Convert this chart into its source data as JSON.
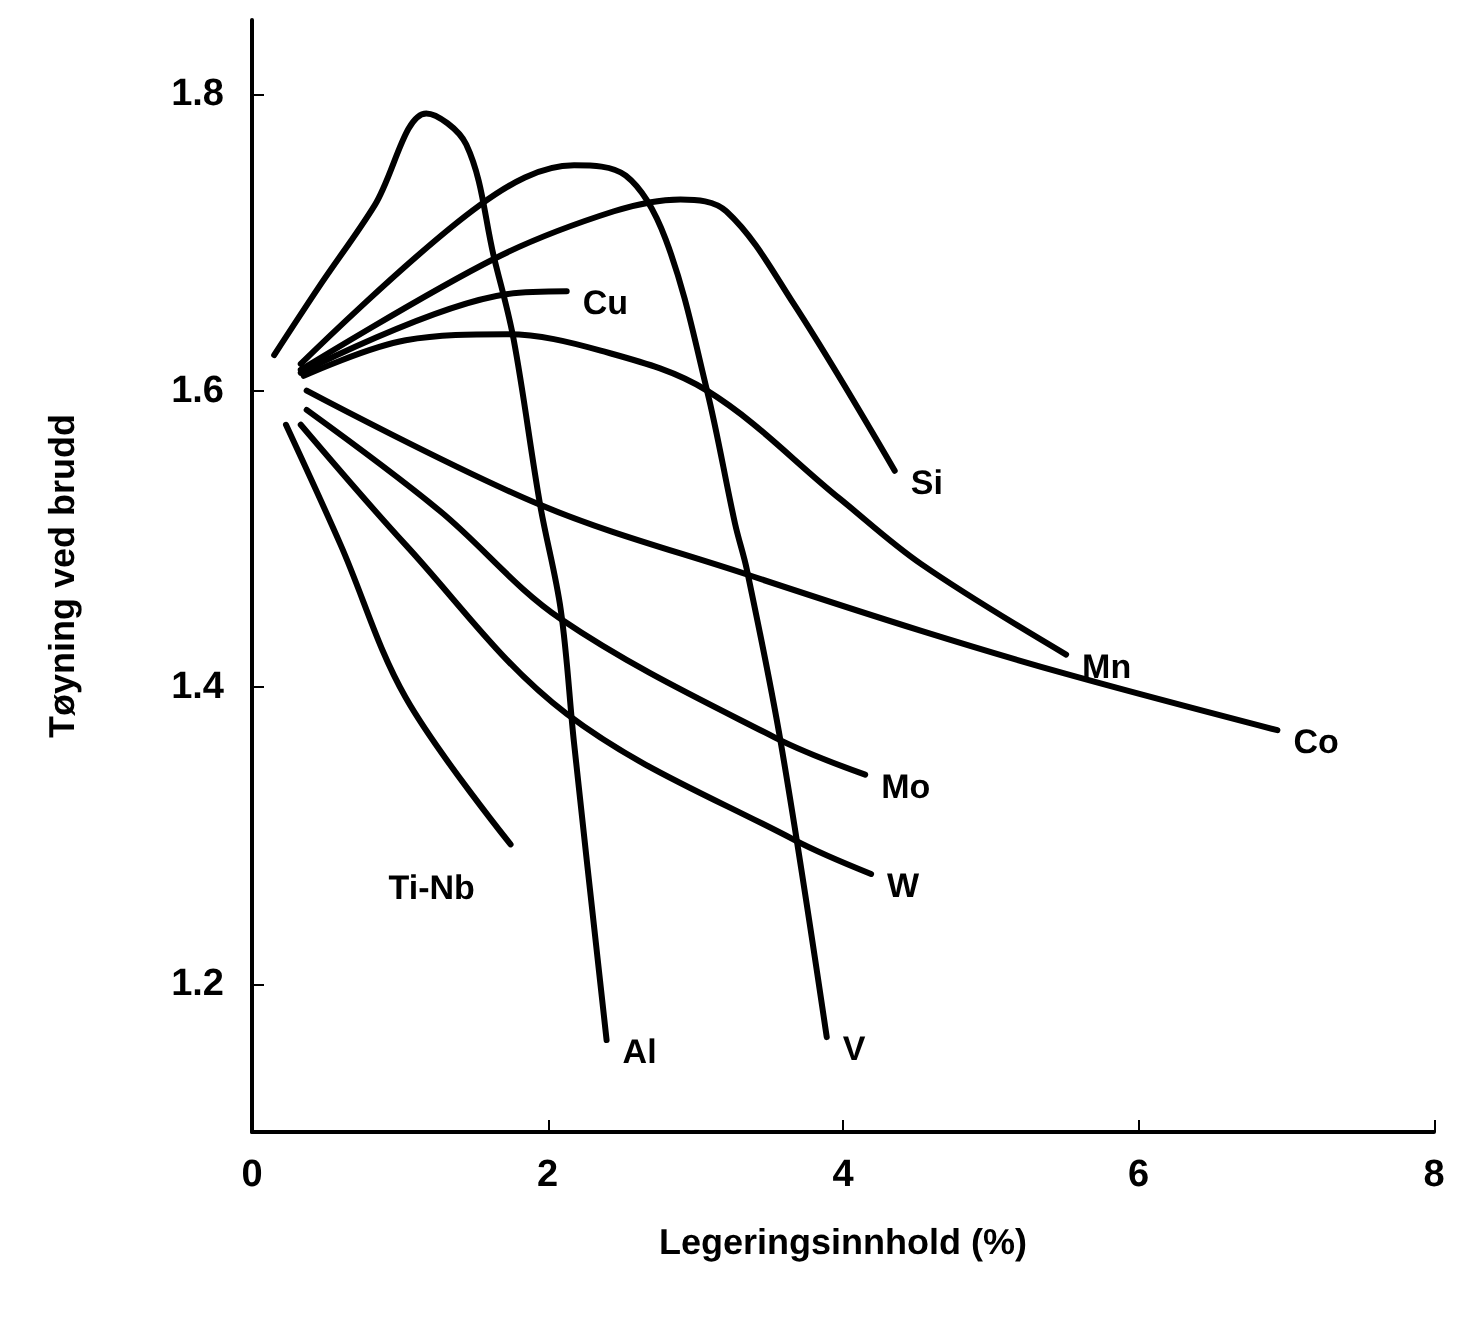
{
  "chart_data": {
    "type": "line",
    "xlabel": "Legeringsinnhold (%)",
    "ylabel": "Tøyning ved brudd",
    "xlim": [
      0,
      8
    ],
    "xticks": [
      0,
      2,
      4,
      6,
      8
    ],
    "ylim": [
      1.1,
      1.85
    ],
    "yticks": [
      1.2,
      1.4,
      1.6,
      1.8
    ],
    "grid": false,
    "legend": false,
    "marker": "none",
    "line_style": "solid",
    "series": [
      {
        "name": "Al",
        "color": "#000000",
        "x": [
          0.15,
          0.46,
          0.83,
          1.18,
          1.45,
          1.64,
          1.77,
          1.95,
          2.09,
          2.18,
          2.4
        ],
        "values": [
          1.624,
          1.671,
          1.725,
          1.787,
          1.766,
          1.689,
          1.635,
          1.523,
          1.452,
          1.362,
          1.162
        ]
      },
      {
        "name": "V",
        "color": "#000000",
        "x": [
          0.33,
          1.54,
          2.18,
          2.53,
          2.8,
          3.08,
          3.27,
          3.35,
          3.58,
          3.89
        ],
        "values": [
          1.618,
          1.725,
          1.752,
          1.745,
          1.702,
          1.6,
          1.51,
          1.479,
          1.362,
          1.164
        ]
      },
      {
        "name": "Si",
        "color": "#000000",
        "x": [
          0.33,
          1.64,
          2.45,
          2.9,
          3.21,
          3.67,
          4.35
        ],
        "values": [
          1.614,
          1.689,
          1.721,
          1.729,
          1.721,
          1.658,
          1.546
        ]
      },
      {
        "name": "Cu",
        "color": "#000000",
        "x": [
          0.33,
          1.72,
          2.13
        ],
        "values": [
          1.612,
          1.665,
          1.667
        ]
      },
      {
        "name": "Mn",
        "color": "#000000",
        "x": [
          0.35,
          1.04,
          1.72,
          2.36,
          3.08,
          3.98,
          4.53,
          5.51
        ],
        "values": [
          1.61,
          1.634,
          1.638,
          1.627,
          1.6,
          1.527,
          1.483,
          1.422
        ]
      },
      {
        "name": "Co",
        "color": "#000000",
        "x": [
          0.37,
          1.95,
          3.35,
          4.53,
          5.51,
          6.94
        ],
        "values": [
          1.6,
          1.523,
          1.476,
          1.438,
          1.409,
          1.371
        ]
      },
      {
        "name": "Mo",
        "color": "#000000",
        "x": [
          0.37,
          1.27,
          2.09,
          3.54,
          4.15
        ],
        "values": [
          1.587,
          1.519,
          1.446,
          1.366,
          1.341
        ]
      },
      {
        "name": "W",
        "color": "#000000",
        "x": [
          0.33,
          1.04,
          2.13,
          3.67,
          4.19
        ],
        "values": [
          1.577,
          1.496,
          1.382,
          1.297,
          1.274
        ]
      },
      {
        "name": "Ti-Nb",
        "color": "#000000",
        "x": [
          0.23,
          0.6,
          1.04,
          1.75
        ],
        "values": [
          1.577,
          1.496,
          1.393,
          1.294
        ]
      }
    ]
  }
}
